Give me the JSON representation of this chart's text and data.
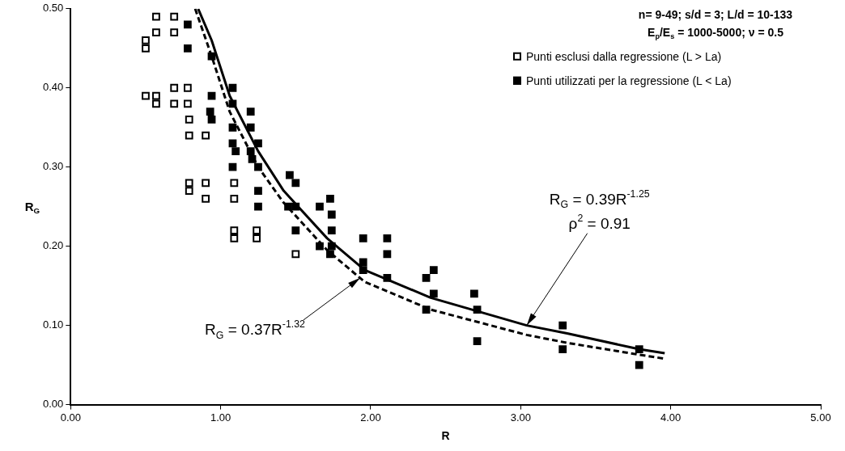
{
  "chart_data": {
    "type": "scatter",
    "xlabel": "R",
    "ylabel": "R$_{G}$",
    "xlim": [
      0,
      5
    ],
    "ylim": [
      0,
      0.5
    ],
    "xticks": [
      {
        "value": 0,
        "label": "0.00"
      },
      {
        "value": 1,
        "label": "1.00"
      },
      {
        "value": 2,
        "label": "2.00"
      },
      {
        "value": 3,
        "label": "3.00"
      },
      {
        "value": 4,
        "label": "4.00"
      },
      {
        "value": 5,
        "label": "5.00"
      }
    ],
    "yticks": [
      {
        "value": 0,
        "label": "0.00"
      },
      {
        "value": 0.1,
        "label": "0.10"
      },
      {
        "value": 0.2,
        "label": "0.20"
      },
      {
        "value": 0.3,
        "label": "0.30"
      },
      {
        "value": 0.4,
        "label": "0.40"
      },
      {
        "value": 0.5,
        "label": "0.50"
      }
    ],
    "grid": false,
    "legend": "top right",
    "marker": "square",
    "series": [
      {
        "name": "Punti esclusi dalla regressione (L > La)",
        "color": "#ffffff",
        "x": [
          0.5,
          0.5,
          0.57,
          0.57,
          0.69,
          0.69,
          0.5,
          0.57,
          0.57,
          0.69,
          0.69,
          0.78,
          0.78,
          0.79,
          0.79,
          0.9,
          0.79,
          0.79,
          0.9,
          0.9,
          1.09,
          1.09,
          1.09,
          1.09,
          1.24,
          1.24,
          1.5
        ],
        "values": [
          0.46,
          0.45,
          0.49,
          0.47,
          0.49,
          0.47,
          0.39,
          0.39,
          0.38,
          0.4,
          0.38,
          0.4,
          0.38,
          0.36,
          0.34,
          0.34,
          0.28,
          0.27,
          0.28,
          0.26,
          0.28,
          0.26,
          0.22,
          0.21,
          0.22,
          0.21,
          0.19
        ]
      },
      {
        "name": "Punti utilizzati per la regressione (L < La)",
        "color": "#000000",
        "x": [
          0.78,
          0.78,
          0.94,
          0.94,
          1.08,
          0.93,
          0.94,
          1.08,
          1.2,
          1.08,
          1.2,
          1.25,
          1.08,
          1.1,
          1.2,
          1.21,
          1.25,
          1.08,
          1.46,
          1.5,
          1.25,
          1.25,
          1.5,
          1.45,
          1.5,
          1.66,
          1.73,
          1.74,
          1.74,
          1.74,
          1.66,
          1.73,
          1.95,
          1.95,
          1.95,
          2.11,
          2.11,
          2.11,
          2.42,
          2.37,
          2.42,
          2.37,
          2.69,
          2.71,
          2.71,
          3.28,
          3.28,
          3.79,
          3.79
        ],
        "values": [
          0.48,
          0.45,
          0.44,
          0.39,
          0.4,
          0.37,
          0.36,
          0.38,
          0.37,
          0.35,
          0.35,
          0.33,
          0.33,
          0.32,
          0.32,
          0.31,
          0.3,
          0.3,
          0.29,
          0.28,
          0.27,
          0.25,
          0.25,
          0.25,
          0.22,
          0.25,
          0.26,
          0.24,
          0.22,
          0.2,
          0.2,
          0.19,
          0.21,
          0.18,
          0.17,
          0.21,
          0.19,
          0.16,
          0.17,
          0.16,
          0.14,
          0.12,
          0.14,
          0.12,
          0.08,
          0.1,
          0.07,
          0.07,
          0.05
        ]
      },
      {
        "type": "line",
        "marker": "none",
        "line_style": "solid",
        "color": "#000000",
        "x": [
          0.85,
          0.94,
          1.06,
          1.25,
          1.42,
          1.71,
          1.96,
          2.4,
          3.04,
          3.31,
          3.79,
          3.96
        ],
        "values": [
          0.5,
          0.46,
          0.39,
          0.32,
          0.27,
          0.21,
          0.17,
          0.135,
          0.1,
          0.09,
          0.07,
          0.065
        ]
      },
      {
        "type": "line",
        "marker": "none",
        "line_style": "dashed",
        "color": "#000000",
        "x": [
          0.83,
          0.94,
          1.06,
          1.25,
          1.42,
          1.71,
          1.96,
          2.4,
          3.04,
          3.31,
          3.79,
          3.96
        ],
        "values": [
          0.5,
          0.44,
          0.37,
          0.3,
          0.255,
          0.195,
          0.155,
          0.12,
          0.088,
          0.078,
          0.063,
          0.058
        ]
      }
    ],
    "annotations": [
      "n= 9-49; s/d = 3; L/d = 10-133",
      "E$_{p}$/E$_{s}$ = 1000-5000; ν = 0.5",
      "R$_{G}$ = 0.39R$^{-1.25}$",
      {
        "text": "ρ$^{2}$ = 0.91",
        "x": 3.04,
        "y": 0.1
      },
      {
        "text": "R$_{G}$ = 0.37R$^{-1.32}$",
        "x": 1.93,
        "y": 0.16
      }
    ]
  }
}
